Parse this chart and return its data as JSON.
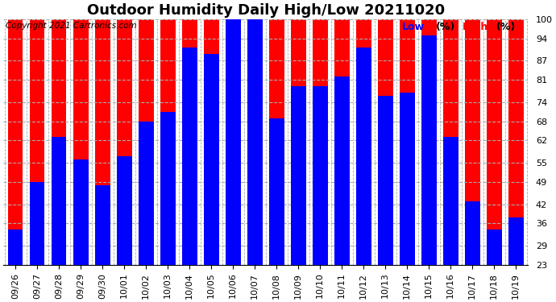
{
  "title": "Outdoor Humidity Daily High/Low 20211020",
  "copyright": "Copyright 2021 Cartronics.com",
  "legend_low": "Low",
  "legend_high": "High",
  "legend_unit": "(%)",
  "dates": [
    "09/26",
    "09/27",
    "09/28",
    "09/29",
    "09/30",
    "10/01",
    "10/02",
    "10/03",
    "10/04",
    "10/05",
    "10/06",
    "10/07",
    "10/08",
    "10/09",
    "10/10",
    "10/11",
    "10/12",
    "10/13",
    "10/14",
    "10/15",
    "10/16",
    "10/17",
    "10/18",
    "10/19"
  ],
  "high_values": [
    100,
    100,
    100,
    100,
    100,
    100,
    100,
    100,
    100,
    100,
    100,
    100,
    100,
    100,
    100,
    100,
    100,
    100,
    100,
    100,
    100,
    100,
    100,
    100
  ],
  "low_values": [
    34,
    49,
    63,
    56,
    48,
    57,
    68,
    71,
    91,
    89,
    100,
    100,
    69,
    79,
    79,
    82,
    91,
    76,
    77,
    95,
    63,
    43,
    34,
    38
  ],
  "ymin": 23,
  "ymax": 100,
  "yticks": [
    23,
    29,
    36,
    42,
    49,
    55,
    62,
    68,
    74,
    81,
    87,
    94,
    100
  ],
  "bar_width": 0.7,
  "high_color": "#ff0000",
  "low_color": "#0000ff",
  "bg_color": "#ffffff",
  "grid_color": "#aaaaaa",
  "title_fontsize": 13,
  "copyright_fontsize": 7.5,
  "tick_fontsize": 8,
  "legend_fontsize": 9
}
